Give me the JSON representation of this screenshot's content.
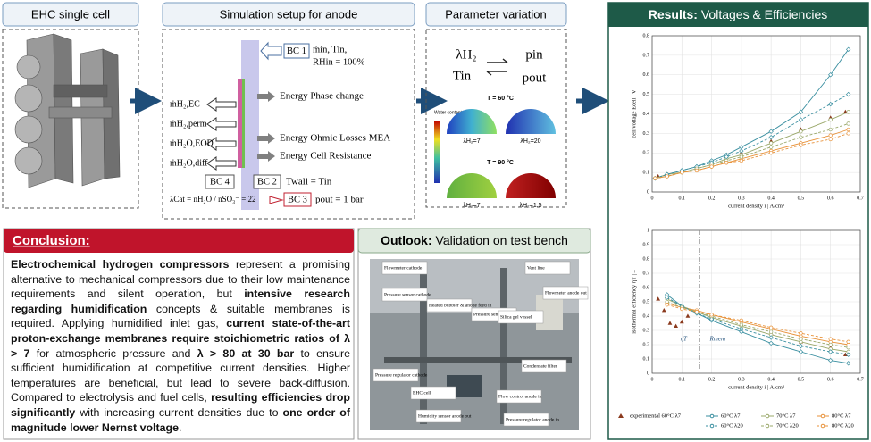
{
  "ehc": {
    "title": "EHC single cell"
  },
  "simulation": {
    "title": "Simulation setup for anode",
    "bc1": "BC 1",
    "inlet_1": "ṁin, Tin,",
    "inlet_2": "RHin = 100%",
    "energies": [
      "Energy Phase change",
      "Energy Ohmic Losses MEA",
      "Energy Cell Resistance"
    ],
    "fluxes": [
      "ṁH₂,EC",
      "ṁH₂,perm",
      "ṁH₂O,EOD",
      "ṁH₂O,diff"
    ],
    "bc4": "BC 4",
    "bc2": "BC 2",
    "bc2_text": "Twall = Tin",
    "bc3": "BC 3",
    "bc3_text": "pout = 1 bar",
    "lambda_cat": "λCat = nH₂O / nSO₃⁻ = 22"
  },
  "parameters": {
    "title": "Parameter variation",
    "lambda": "λH₂",
    "p_in": "pin",
    "t_in": "Tin",
    "p_out": "pout",
    "colorbar_label": "Water content MEA",
    "groups": [
      {
        "label": "T = 60 °C",
        "cases": [
          "λH₂=7",
          "λH₂=20"
        ]
      },
      {
        "label": "T = 90 °C",
        "cases": [
          "λH₂=7",
          "λH₂=1.5"
        ]
      }
    ]
  },
  "results": {
    "title_bold": "Results:",
    "title_rest": " Voltages & Efficiencies"
  },
  "chart_data": [
    {
      "type": "line",
      "ylabel": "cell voltage Ecell | V",
      "xlabel": "current density i | A/cm²",
      "xlim": [
        0,
        0.7
      ],
      "ylim": [
        0,
        0.8
      ],
      "xticks": [
        0,
        0.1,
        0.2,
        0.3,
        0.4,
        0.5,
        0.6,
        0.7
      ],
      "yticks": [
        0,
        0.1,
        0.2,
        0.3,
        0.4,
        0.5,
        0.6,
        0.7,
        0.8
      ],
      "grid": true,
      "series": [
        {
          "color": "#8b3a1e",
          "style": "none",
          "marker": "triangle",
          "x": [
            0.02,
            0.05,
            0.1,
            0.15,
            0.2,
            0.3,
            0.4,
            0.5,
            0.6,
            0.65
          ],
          "values": [
            0.08,
            0.09,
            0.11,
            0.13,
            0.15,
            0.2,
            0.26,
            0.32,
            0.38,
            0.41
          ]
        },
        {
          "color": "#3a8fa0",
          "style": "solid",
          "marker": "diamond",
          "x": [
            0.01,
            0.05,
            0.1,
            0.15,
            0.2,
            0.25,
            0.3,
            0.4,
            0.5,
            0.6,
            0.66
          ],
          "values": [
            0.07,
            0.09,
            0.11,
            0.13,
            0.16,
            0.19,
            0.23,
            0.31,
            0.41,
            0.6,
            0.73
          ]
        },
        {
          "color": "#9aa86a",
          "style": "solid",
          "marker": "circle",
          "x": [
            0.01,
            0.05,
            0.1,
            0.15,
            0.2,
            0.25,
            0.3,
            0.4,
            0.5,
            0.6,
            0.66
          ],
          "values": [
            0.07,
            0.09,
            0.1,
            0.12,
            0.14,
            0.17,
            0.19,
            0.25,
            0.31,
            0.37,
            0.41
          ]
        },
        {
          "color": "#e8923a",
          "style": "solid",
          "marker": "circle",
          "x": [
            0.01,
            0.05,
            0.1,
            0.15,
            0.2,
            0.25,
            0.3,
            0.4,
            0.5,
            0.6,
            0.66
          ],
          "values": [
            0.07,
            0.08,
            0.1,
            0.11,
            0.13,
            0.15,
            0.17,
            0.21,
            0.25,
            0.29,
            0.32
          ]
        },
        {
          "color": "#3a8fa0",
          "style": "dashed",
          "marker": "diamond",
          "x": [
            0.01,
            0.05,
            0.1,
            0.15,
            0.2,
            0.25,
            0.3,
            0.4,
            0.5,
            0.6,
            0.66
          ],
          "values": [
            0.07,
            0.09,
            0.11,
            0.13,
            0.15,
            0.18,
            0.21,
            0.28,
            0.37,
            0.45,
            0.5
          ]
        },
        {
          "color": "#9aa86a",
          "style": "dashed",
          "marker": "circle",
          "x": [
            0.01,
            0.05,
            0.1,
            0.15,
            0.2,
            0.25,
            0.3,
            0.4,
            0.5,
            0.6,
            0.66
          ],
          "values": [
            0.07,
            0.08,
            0.1,
            0.12,
            0.14,
            0.16,
            0.18,
            0.23,
            0.28,
            0.32,
            0.35
          ]
        },
        {
          "color": "#e8923a",
          "style": "dashed",
          "marker": "circle",
          "x": [
            0.01,
            0.05,
            0.1,
            0.15,
            0.2,
            0.25,
            0.3,
            0.4,
            0.5,
            0.6,
            0.66
          ],
          "values": [
            0.07,
            0.08,
            0.1,
            0.11,
            0.13,
            0.15,
            0.16,
            0.2,
            0.24,
            0.27,
            0.3
          ]
        }
      ]
    },
    {
      "type": "line",
      "ylabel": "isothermal efficiency ηT | –",
      "xlabel": "current density i | A/cm²",
      "xlim": [
        0,
        0.7
      ],
      "ylim": [
        0,
        1
      ],
      "xticks": [
        0,
        0.1,
        0.2,
        0.3,
        0.4,
        0.5,
        0.6,
        0.7
      ],
      "yticks": [
        0,
        0.1,
        0.2,
        0.3,
        0.4,
        0.5,
        0.6,
        0.7,
        0.8,
        0.9,
        1
      ],
      "grid": true,
      "vline": 0.16,
      "annotations": [
        "ηT",
        "Rmem"
      ],
      "series": [
        {
          "name": "experimental 60°C λ7",
          "color": "#8b3a1e",
          "style": "none",
          "marker": "triangle",
          "x": [
            0.02,
            0.04,
            0.06,
            0.08,
            0.1,
            0.12,
            0.15,
            0.2,
            0.3,
            0.4,
            0.5,
            0.6,
            0.65
          ],
          "values": [
            0.52,
            0.44,
            0.35,
            0.33,
            0.36,
            0.4,
            0.43,
            0.4,
            0.34,
            0.28,
            0.22,
            0.18,
            0.13
          ]
        },
        {
          "name": "60°C λ7",
          "color": "#3a8fa0",
          "style": "solid",
          "marker": "diamond",
          "x": [
            0.05,
            0.1,
            0.15,
            0.2,
            0.3,
            0.4,
            0.5,
            0.6,
            0.66
          ],
          "values": [
            0.55,
            0.47,
            0.42,
            0.37,
            0.29,
            0.21,
            0.15,
            0.09,
            0.07
          ]
        },
        {
          "name": "70°C λ7",
          "color": "#9aa86a",
          "style": "solid",
          "marker": "circle",
          "x": [
            0.05,
            0.1,
            0.15,
            0.2,
            0.3,
            0.4,
            0.5,
            0.6,
            0.66
          ],
          "values": [
            0.52,
            0.47,
            0.43,
            0.39,
            0.33,
            0.27,
            0.22,
            0.17,
            0.15
          ]
        },
        {
          "name": "80°C λ7",
          "color": "#e8923a",
          "style": "solid",
          "marker": "circle",
          "x": [
            0.05,
            0.1,
            0.15,
            0.2,
            0.3,
            0.4,
            0.5,
            0.6,
            0.66
          ],
          "values": [
            0.49,
            0.46,
            0.44,
            0.41,
            0.36,
            0.31,
            0.26,
            0.22,
            0.2
          ]
        },
        {
          "name": "60°C λ20",
          "color": "#3a8fa0",
          "style": "dashed",
          "marker": "diamond",
          "x": [
            0.05,
            0.1,
            0.15,
            0.2,
            0.3,
            0.4,
            0.5,
            0.6,
            0.66
          ],
          "values": [
            0.53,
            0.47,
            0.42,
            0.38,
            0.31,
            0.25,
            0.19,
            0.15,
            0.13
          ]
        },
        {
          "name": "70°C λ20",
          "color": "#9aa86a",
          "style": "dashed",
          "marker": "circle",
          "x": [
            0.05,
            0.1,
            0.15,
            0.2,
            0.3,
            0.4,
            0.5,
            0.6,
            0.66
          ],
          "values": [
            0.5,
            0.46,
            0.43,
            0.4,
            0.34,
            0.29,
            0.24,
            0.2,
            0.18
          ]
        },
        {
          "name": "80°C λ20",
          "color": "#e8923a",
          "style": "dashed",
          "marker": "circle",
          "x": [
            0.05,
            0.1,
            0.15,
            0.2,
            0.3,
            0.4,
            0.5,
            0.6,
            0.66
          ],
          "values": [
            0.48,
            0.45,
            0.43,
            0.41,
            0.37,
            0.32,
            0.28,
            0.24,
            0.22
          ]
        }
      ]
    }
  ],
  "conclusion": {
    "title": "Conclusion:",
    "segments": [
      {
        "text": "Electrochemical hydrogen compressors",
        "bold": true
      },
      {
        "text": " represent a promising alternative to mechanical compressors due to their low maintenance requirements and silent operation, but ",
        "bold": false
      },
      {
        "text": "intensive research regarding humidification",
        "bold": true
      },
      {
        "text": " concepts & suitable membranes is required. Applying humidified inlet gas, ",
        "bold": false
      },
      {
        "text": "current state-of-the-art proton-exchange membranes require stoichiometric ratios of λ > 7",
        "bold": true
      },
      {
        "text": " for atmospheric pressure and ",
        "bold": false
      },
      {
        "text": "λ > 80 at 30 bar",
        "bold": true
      },
      {
        "text": " to ensure sufficient humidification at competitive current densities. Higher temperatures are beneficial, but lead to severe back-diffusion. Compared to electrolysis and fuel cells, ",
        "bold": false
      },
      {
        "text": "resulting efficiencies drop significantly",
        "bold": true
      },
      {
        "text": " with increasing current densities due to ",
        "bold": false
      },
      {
        "text": "one order of magnitude lower Nernst voltage",
        "bold": true
      },
      {
        "text": ".",
        "bold": false
      }
    ]
  },
  "outlook": {
    "title_bold": "Outlook:",
    "title_rest": " Validation on test bench",
    "labels": [
      "Flowmeter cathode",
      "Pressure sensor cathode",
      "Heated bubbler & anode feed in",
      "Pressure sensor anode in & out",
      "Vent line",
      "Flowmeter anode out",
      "Silica gel vessel",
      "Condensate filter",
      "Pressure regulator cathode",
      "EHC cell",
      "Flow control anode in",
      "Humidity sensor anode out",
      "Pressure regulator anode in"
    ]
  }
}
